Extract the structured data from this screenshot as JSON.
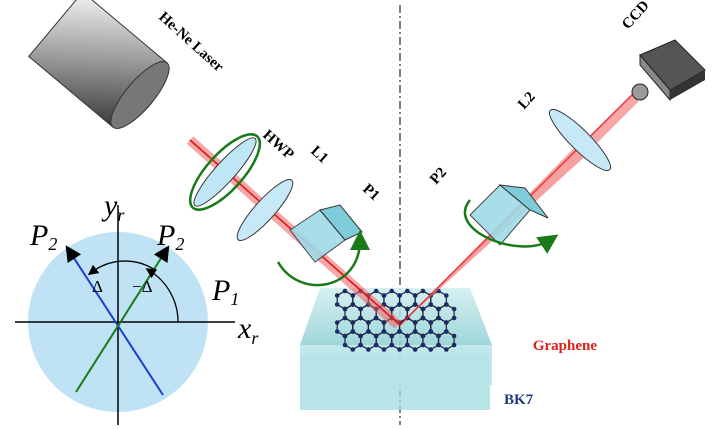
{
  "labels": {
    "laser": "He-Ne Laser",
    "hwp": "HWP",
    "l1": "L1",
    "p1": "P1",
    "p2": "P2",
    "l2": "L2",
    "ccd": "CCD",
    "graphene": "Graphene",
    "bk7": "BK7"
  },
  "coords": {
    "y_axis": {
      "main": "y",
      "sub": "r"
    },
    "x_axis": {
      "main": "x",
      "sub": "r"
    },
    "p2_left": {
      "main": "P",
      "sub": "2"
    },
    "p2_right": {
      "main": "P",
      "sub": "2"
    },
    "p1": {
      "main": "P",
      "sub": "1"
    },
    "delta": "Δ",
    "neg_delta": "−Δ"
  }
}
